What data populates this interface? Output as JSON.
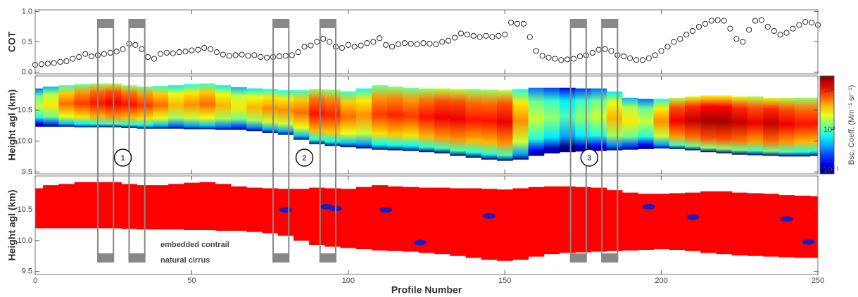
{
  "chart_data": [
    {
      "type": "scatter",
      "ylabel": "COT",
      "x": [
        0,
        2,
        4,
        6,
        8,
        10,
        12,
        14,
        16,
        18,
        20,
        22,
        24,
        26,
        28,
        30,
        32,
        34,
        36,
        38,
        40,
        42,
        44,
        46,
        48,
        50,
        52,
        54,
        56,
        58,
        60,
        62,
        64,
        66,
        68,
        70,
        72,
        74,
        76,
        78,
        80,
        82,
        84,
        86,
        88,
        90,
        92,
        94,
        96,
        98,
        100,
        102,
        104,
        106,
        108,
        110,
        112,
        114,
        116,
        118,
        120,
        122,
        124,
        126,
        128,
        130,
        132,
        134,
        136,
        138,
        140,
        142,
        144,
        146,
        148,
        150,
        152,
        154,
        156,
        158,
        160,
        162,
        164,
        166,
        168,
        170,
        172,
        174,
        176,
        178,
        180,
        182,
        184,
        186,
        188,
        190,
        192,
        194,
        196,
        198,
        200,
        202,
        204,
        206,
        208,
        210,
        212,
        214,
        216,
        218,
        220,
        222,
        224,
        226,
        228,
        230,
        232,
        234,
        236,
        238,
        240,
        242,
        244,
        246,
        248,
        250
      ],
      "values": [
        0.12,
        0.13,
        0.14,
        0.15,
        0.17,
        0.18,
        0.22,
        0.25,
        0.3,
        0.26,
        0.28,
        0.3,
        0.32,
        0.34,
        0.38,
        0.47,
        0.45,
        0.38,
        0.25,
        0.22,
        0.3,
        0.32,
        0.31,
        0.33,
        0.34,
        0.36,
        0.37,
        0.4,
        0.38,
        0.33,
        0.29,
        0.27,
        0.28,
        0.29,
        0.27,
        0.28,
        0.25,
        0.24,
        0.25,
        0.26,
        0.27,
        0.28,
        0.33,
        0.42,
        0.44,
        0.5,
        0.55,
        0.5,
        0.42,
        0.4,
        0.45,
        0.42,
        0.44,
        0.48,
        0.5,
        0.56,
        0.45,
        0.42,
        0.46,
        0.48,
        0.47,
        0.46,
        0.48,
        0.47,
        0.46,
        0.5,
        0.52,
        0.57,
        0.64,
        0.62,
        0.6,
        0.58,
        0.6,
        0.58,
        0.6,
        0.62,
        0.82,
        0.8,
        0.8,
        0.58,
        0.35,
        0.27,
        0.24,
        0.22,
        0.2,
        0.21,
        0.22,
        0.26,
        0.28,
        0.32,
        0.37,
        0.38,
        0.35,
        0.28,
        0.26,
        0.23,
        0.2,
        0.2,
        0.23,
        0.28,
        0.35,
        0.42,
        0.5,
        0.55,
        0.62,
        0.68,
        0.75,
        0.8,
        0.85,
        0.86,
        0.85,
        0.72,
        0.55,
        0.5,
        0.7,
        0.85,
        0.86,
        0.75,
        0.68,
        0.62,
        0.65,
        0.72,
        0.78,
        0.83,
        0.82,
        0.78
      ],
      "xlim": [
        0,
        250
      ],
      "xticks": [
        0,
        50,
        100,
        150,
        200,
        250
      ],
      "ylim": [
        -0.03,
        1.03
      ],
      "yticks": [
        {
          "value": 0,
          "label": "0.0"
        },
        0.5,
        {
          "value": 1,
          "label": "1.0"
        }
      ]
    },
    {
      "type": "heatmap",
      "ylabel": "Height agl (km)",
      "x": [
        0,
        5,
        10,
        15,
        20,
        25,
        30,
        35,
        40,
        45,
        50,
        55,
        60,
        65,
        70,
        75,
        80,
        85,
        90,
        95,
        100,
        105,
        110,
        115,
        120,
        125,
        130,
        135,
        140,
        145,
        150,
        155,
        160,
        165,
        170,
        175,
        180,
        185,
        190,
        195,
        200,
        205,
        210,
        215,
        220,
        225,
        230,
        235,
        240,
        245,
        250
      ],
      "top": [
        10.85,
        10.88,
        10.9,
        10.92,
        10.93,
        10.93,
        10.9,
        10.88,
        10.89,
        10.9,
        10.92,
        10.93,
        10.9,
        10.87,
        10.85,
        10.84,
        10.82,
        10.82,
        10.84,
        10.83,
        10.8,
        10.85,
        10.9,
        10.88,
        10.86,
        10.85,
        10.85,
        10.84,
        10.84,
        10.83,
        10.82,
        10.84,
        10.86,
        10.86,
        10.86,
        10.85,
        10.85,
        10.8,
        10.7,
        10.68,
        10.68,
        10.7,
        10.72,
        10.74,
        10.74,
        10.72,
        10.72,
        10.7,
        10.7,
        10.7,
        10.7
      ],
      "base": [
        10.23,
        10.23,
        10.23,
        10.22,
        10.22,
        10.22,
        10.21,
        10.2,
        10.2,
        10.2,
        10.19,
        10.19,
        10.18,
        10.18,
        10.16,
        10.13,
        10.1,
        10.02,
        9.95,
        9.92,
        9.9,
        9.88,
        9.86,
        9.85,
        9.84,
        9.82,
        9.8,
        9.76,
        9.73,
        9.7,
        9.68,
        9.7,
        9.76,
        9.8,
        9.82,
        9.83,
        9.84,
        9.85,
        9.86,
        9.87,
        9.88,
        9.87,
        9.85,
        9.82,
        9.8,
        9.78,
        9.77,
        9.76,
        9.75,
        9.75,
        9.76
      ],
      "values": [
        2,
        3,
        6,
        8,
        10,
        12,
        10,
        8,
        6,
        4,
        5,
        6,
        4,
        3,
        4,
        5,
        5,
        6,
        10,
        9,
        6,
        5,
        8,
        9,
        8,
        10,
        12,
        12,
        10,
        10,
        12,
        5,
        2,
        1.5,
        1,
        1.5,
        2,
        4,
        3,
        2,
        5,
        12,
        15,
        18,
        18,
        15,
        12,
        15,
        12,
        10,
        10
      ],
      "xlim": [
        0,
        250
      ],
      "xticks": [
        0,
        50,
        100,
        150,
        200,
        250
      ],
      "ylim": [
        9.47,
        11.05
      ],
      "yticks": [
        9.5,
        {
          "value": 10,
          "label": "10.0"
        },
        10.5
      ],
      "colorbar": {
        "label": "Bsc. Coeff. (Mm⁻¹ sr⁻¹)",
        "log": true,
        "lim": [
          0.08,
          22
        ],
        "ticks": [
          {
            "value": 0.1,
            "label": "10⁻¹"
          },
          {
            "value": 1,
            "label": "10⁰"
          },
          {
            "value": 10,
            "label": "10¹"
          }
        ]
      }
    },
    {
      "type": "mask",
      "ylabel": "Height agl (km)",
      "xlabel": "Profile Number",
      "xlim": [
        0,
        250
      ],
      "xticks": [
        0,
        50,
        100,
        150,
        200,
        250
      ],
      "ylim": [
        9.45,
        11.05
      ],
      "yticks": [
        9.5,
        {
          "value": 10,
          "label": "10.0"
        },
        10.5
      ],
      "series": [
        {
          "name": "embedded contrail",
          "color": "#1c1cc0",
          "x": [
            80,
            93,
            96,
            112,
            123,
            145,
            196,
            210,
            240,
            247
          ],
          "y": [
            10.5,
            10.55,
            10.52,
            10.5,
            9.97,
            10.4,
            10.55,
            10.38,
            10.35,
            9.98
          ]
        },
        {
          "name": "natural cirrus",
          "color": "#ff0000",
          "x": [
            0,
            5,
            10,
            15,
            20,
            25,
            30,
            35,
            40,
            45,
            50,
            55,
            60,
            65,
            70,
            75,
            80,
            85,
            90,
            95,
            100,
            105,
            110,
            115,
            120,
            125,
            130,
            135,
            140,
            145,
            150,
            155,
            160,
            165,
            170,
            175,
            180,
            185,
            190,
            195,
            200,
            205,
            210,
            215,
            220,
            225,
            230,
            235,
            240,
            245,
            250
          ],
          "top": [
            10.85,
            10.9,
            10.92,
            10.95,
            10.95,
            10.95,
            10.92,
            10.9,
            10.9,
            10.92,
            10.94,
            10.95,
            10.92,
            10.88,
            10.86,
            10.85,
            10.84,
            10.84,
            10.86,
            10.85,
            10.84,
            10.87,
            10.9,
            10.88,
            10.87,
            10.86,
            10.86,
            10.85,
            10.85,
            10.84,
            10.83,
            10.85,
            10.87,
            10.88,
            10.88,
            10.87,
            10.86,
            10.82,
            10.78,
            10.76,
            10.76,
            10.77,
            10.78,
            10.8,
            10.8,
            10.78,
            10.77,
            10.76,
            10.74,
            10.73,
            10.72
          ],
          "base": [
            10.2,
            10.2,
            10.2,
            10.2,
            10.2,
            10.2,
            10.19,
            10.18,
            10.18,
            10.18,
            10.17,
            10.17,
            10.16,
            10.16,
            10.14,
            10.12,
            10.08,
            10.0,
            9.93,
            9.9,
            9.88,
            9.86,
            9.84,
            9.83,
            9.82,
            9.8,
            9.78,
            9.75,
            9.72,
            9.69,
            9.67,
            9.69,
            9.74,
            9.78,
            9.8,
            9.81,
            9.82,
            9.83,
            9.84,
            9.85,
            9.86,
            9.85,
            9.83,
            9.8,
            9.78,
            9.76,
            9.75,
            9.74,
            9.73,
            9.72,
            9.72
          ]
        }
      ],
      "boxes": [
        [
          20,
          25
        ],
        [
          30,
          35
        ],
        [
          76,
          81
        ],
        [
          91,
          96
        ],
        [
          171,
          176
        ],
        [
          181,
          186
        ]
      ],
      "box_labels": [
        {
          "text": "1",
          "x": 28
        },
        {
          "text": "2",
          "x": 86
        },
        {
          "text": "3",
          "x": 177
        }
      ]
    }
  ]
}
